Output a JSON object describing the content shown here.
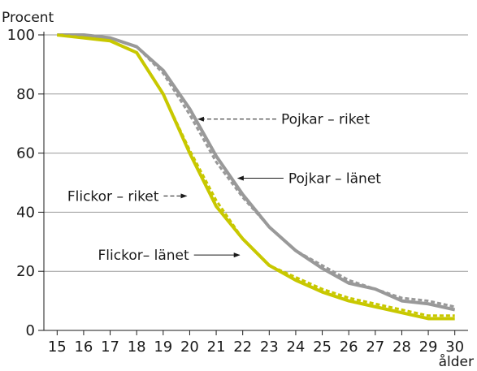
{
  "chart_data": {
    "type": "line",
    "ylabel": "Procent",
    "xlabel": "ålder",
    "x": [
      15,
      16,
      17,
      18,
      19,
      20,
      21,
      22,
      23,
      24,
      25,
      26,
      27,
      28,
      29,
      30
    ],
    "xlim": [
      15,
      30
    ],
    "ylim": [
      0,
      100
    ],
    "yticks": [
      0,
      20,
      40,
      60,
      80,
      100
    ],
    "grid": true,
    "legend": "inline annotations",
    "series": [
      {
        "name": "Pojkar – länet",
        "color": "#999999",
        "style": "solid",
        "values": [
          100,
          100,
          99,
          96,
          88,
          75,
          59,
          46,
          35,
          27,
          21,
          16,
          14,
          10,
          9,
          7
        ]
      },
      {
        "name": "Pojkar – riket",
        "color": "#999999",
        "style": "dashed",
        "values": [
          100,
          100,
          99,
          96,
          87,
          73,
          57,
          45,
          35,
          27,
          22,
          17,
          14,
          11,
          10,
          8
        ]
      },
      {
        "name": "Flickor – riket",
        "color": "#c8c800",
        "style": "dashed",
        "values": [
          100,
          99,
          98,
          94,
          80,
          61,
          44,
          31,
          22,
          18,
          14,
          11,
          9,
          7,
          5,
          5
        ]
      },
      {
        "name": "Flickor– länet",
        "color": "#c8c800",
        "style": "solid",
        "values": [
          100,
          99,
          98,
          94,
          80,
          60,
          42,
          31,
          22,
          17,
          13,
          10,
          8,
          6,
          4,
          4
        ]
      }
    ],
    "annotations": [
      {
        "text": "Pojkar – riket",
        "series": "Pojkar – riket",
        "x": 20.2,
        "y": 71.5,
        "arrow": "dashed",
        "side": "right"
      },
      {
        "text": "Pojkar – länet",
        "series": "Pojkar – länet",
        "x": 21.7,
        "y": 51.5,
        "arrow": "solid",
        "side": "right"
      },
      {
        "text": "Flickor – riket",
        "series": "Flickor – riket",
        "x": 20.0,
        "y": 45.5,
        "arrow": "dashed",
        "side": "left"
      },
      {
        "text": "Flickor– länet",
        "series": "Flickor– länet",
        "x": 22.0,
        "y": 25.5,
        "arrow": "solid",
        "side": "left"
      }
    ]
  }
}
